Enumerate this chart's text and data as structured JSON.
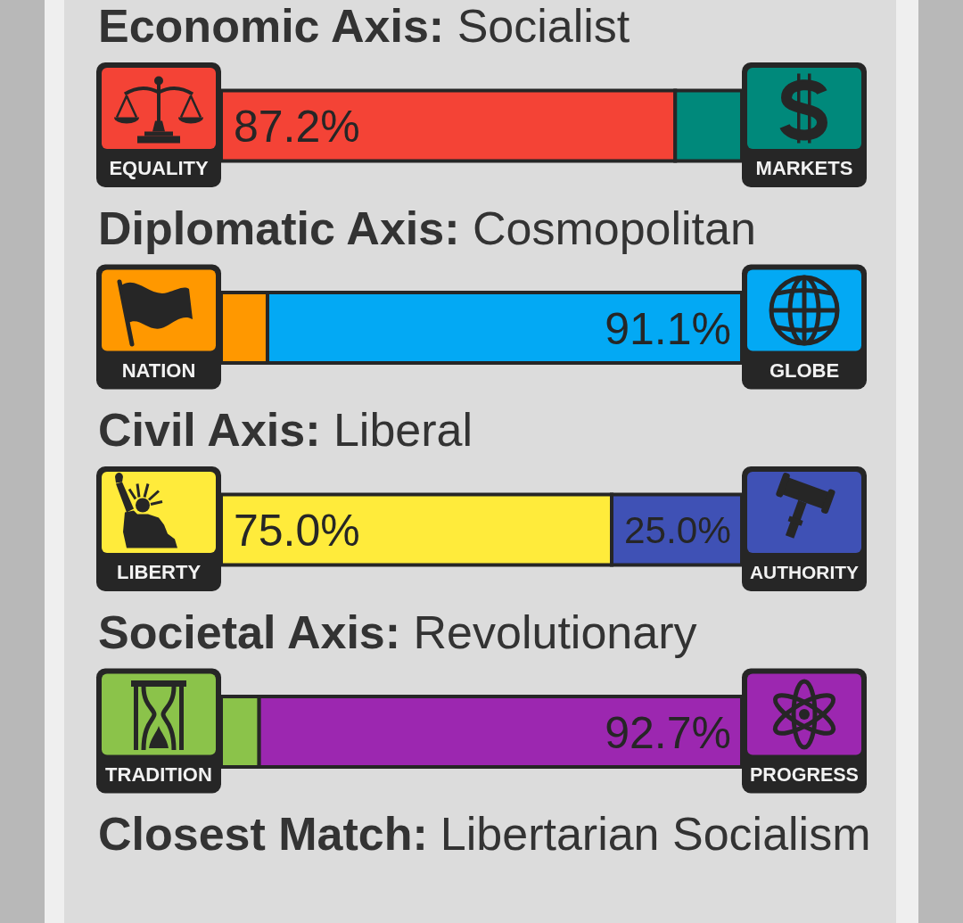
{
  "chart_data": [
    {
      "type": "bar",
      "orientation": "horizontal",
      "stacked": true,
      "legend": "bottom",
      "tick_labels": false,
      "categories": [
        "Economic Axis: Socialist",
        "Diplomatic Axis: Cosmopolitan",
        "Civil Axis: Liberal",
        "Societal Axis: Revolutionary"
      ],
      "xlim": [
        0,
        100
      ],
      "series": [
        {
          "name": "EQUALITY",
          "color": "#f44336",
          "values": [
            87.2,
            null,
            null,
            null
          ],
          "value_labels": [
            "87.2%",
            null,
            null,
            null
          ]
        },
        {
          "name": "MARKETS",
          "color": "#00897b",
          "values": [
            12.8,
            null,
            null,
            null
          ],
          "value_labels": [
            null,
            null,
            null,
            null
          ]
        },
        {
          "name": "NATION",
          "color": "#ff9800",
          "values": [
            null,
            8.9,
            null,
            null
          ],
          "value_labels": [
            null,
            null,
            null,
            null
          ]
        },
        {
          "name": "GLOBE",
          "color": "#03a9f4",
          "values": [
            null,
            91.1,
            null,
            null
          ],
          "value_labels": [
            null,
            "91.1%",
            null,
            null
          ]
        },
        {
          "name": "LIBERTY",
          "color": "#ffeb3b",
          "values": [
            null,
            null,
            75.0,
            null
          ],
          "value_labels": [
            null,
            null,
            "75.0%",
            null
          ]
        },
        {
          "name": "AUTHORITY",
          "color": "#3f51b5",
          "values": [
            null,
            null,
            25.0,
            null
          ],
          "value_labels": [
            null,
            null,
            "25.0%",
            null
          ]
        },
        {
          "name": "TRADITION",
          "color": "#8bc34a",
          "values": [
            null,
            null,
            null,
            7.3
          ],
          "value_labels": [
            null,
            null,
            null,
            null
          ]
        },
        {
          "name": "PROGRESS",
          "color": "#9c27b0",
          "values": [
            null,
            null,
            null,
            92.7
          ],
          "value_labels": [
            null,
            null,
            null,
            "92.7%"
          ]
        }
      ]
    },
    {
      "type": "other",
      "title": "Closest Match:",
      "subtitle": "Libertarian Socialism"
    }
  ]
}
